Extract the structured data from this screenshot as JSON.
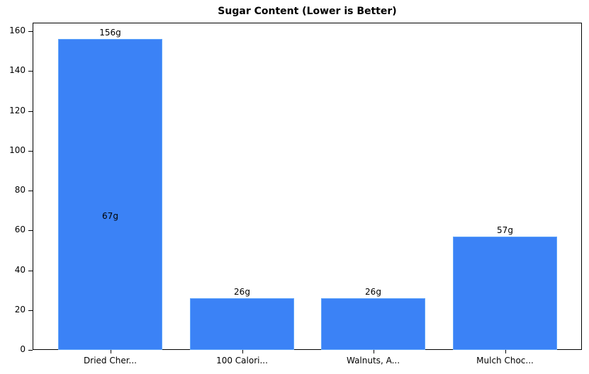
{
  "chart_data": {
    "type": "bar",
    "title": "Sugar Content (Lower is Better)",
    "xlabel": "",
    "ylabel": "",
    "categories": [
      "Dried Cher...",
      "100 Calori...",
      "Walnuts, A...",
      "Mulch Choc..."
    ],
    "values": [
      156,
      26,
      26,
      57
    ],
    "bar_labels": [
      "156g",
      "26g",
      "26g",
      "57g"
    ],
    "annotations": [
      {
        "text": "67g",
        "x": "Dried Cher...",
        "y": 67
      }
    ],
    "ylim": [
      0,
      164
    ],
    "yticks": [
      0,
      20,
      40,
      60,
      80,
      100,
      120,
      140,
      160
    ],
    "grid": false,
    "bar_color": "#3b82f6"
  }
}
